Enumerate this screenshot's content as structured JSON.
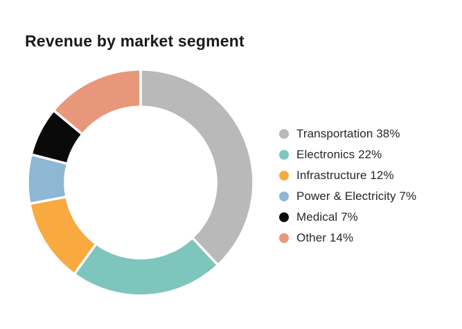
{
  "title": "Revenue by market segment",
  "chart_data": {
    "type": "pie",
    "subtype": "donut",
    "title": "Revenue by market segment",
    "unit": "%",
    "start_angle_deg": 0,
    "direction": "clockwise",
    "inner_radius_ratio": 0.667,
    "gap_color": "#ffffff",
    "legend_position": "right",
    "segments": [
      {
        "label": "Transportation",
        "value": 38,
        "color": "#b9b9b9",
        "legend_text": "Transportation 38%"
      },
      {
        "label": "Electronics",
        "value": 22,
        "color": "#7ec5be",
        "legend_text": "Electronics 22%"
      },
      {
        "label": "Infrastructure",
        "value": 12,
        "color": "#f8a93f",
        "legend_text": "Infrastructure 12%"
      },
      {
        "label": "Power & Electricity",
        "value": 7,
        "color": "#8db7d3",
        "legend_text": "Power & Electricity 7%"
      },
      {
        "label": "Medical",
        "value": 7,
        "color": "#0a0a0a",
        "legend_text": "Medical 7%"
      },
      {
        "label": "Other",
        "value": 14,
        "color": "#e8977a",
        "legend_text": "Other 14%"
      }
    ]
  }
}
